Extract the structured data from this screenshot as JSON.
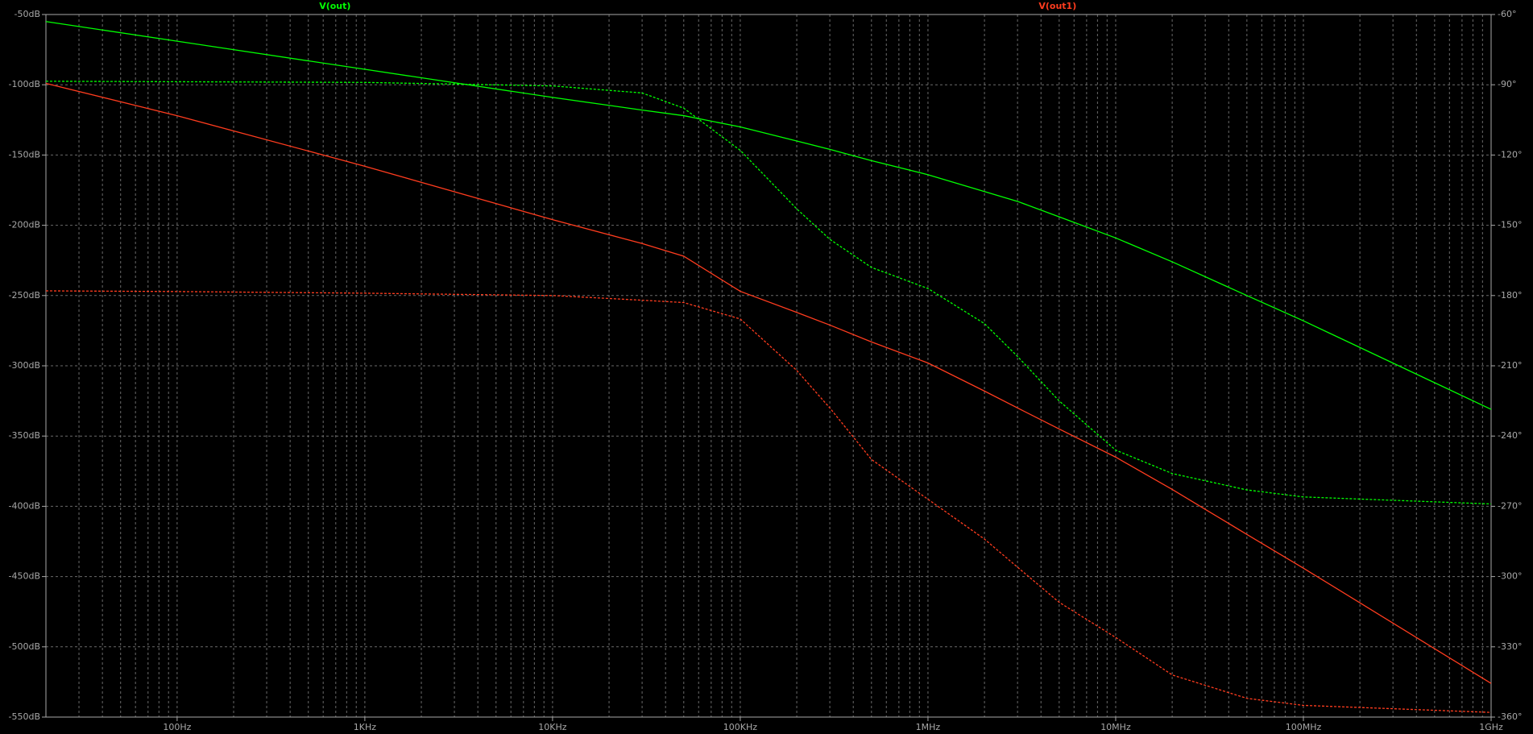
{
  "chart_data": {
    "type": "line",
    "x": [
      20,
      100,
      1000,
      10000,
      30000,
      50000,
      100000,
      200000,
      300000,
      500000,
      1000000,
      2000000,
      3000000,
      5000000,
      10000000,
      20000000,
      50000000,
      100000000,
      1000000000
    ],
    "series": [
      {
        "name": "V(out)",
        "color": "#00ff00",
        "values": [
          -55,
          -69,
          -89,
          -109,
          -118,
          -122,
          -130,
          -140,
          -146,
          -154,
          -164,
          -176,
          -183,
          -194,
          -209,
          -226,
          -250,
          -268,
          -331
        ],
        "phase": [
          -88.5,
          -88.7,
          -89,
          -90.5,
          -93.5,
          -100,
          -118,
          -143,
          -156,
          -168,
          -177,
          -192,
          -206,
          -225,
          -246,
          -256,
          -263,
          -266,
          -269
        ]
      },
      {
        "name": "V(out1)",
        "color": "#ff3c1e",
        "values": [
          -99,
          -122,
          -158,
          -196,
          -213,
          -222,
          -247,
          -262,
          -271,
          -283,
          -298,
          -318,
          -330,
          -345,
          -365,
          -388,
          -420,
          -444,
          -526
        ],
        "phase": [
          -178,
          -178.3,
          -179,
          -180,
          -182,
          -183,
          -190,
          -212,
          -228,
          -250,
          -267,
          -284,
          -296,
          -311,
          -326,
          -342,
          -352,
          -355,
          -358
        ]
      }
    ],
    "log_x": true,
    "grid": true,
    "xlim": [
      20,
      1000000000
    ],
    "xticks": [
      {
        "value": 100,
        "label": "100Hz"
      },
      {
        "value": 1000,
        "label": "1KHz"
      },
      {
        "value": 10000,
        "label": "10KHz"
      },
      {
        "value": 100000,
        "label": "100KHz"
      },
      {
        "value": 1000000,
        "label": "1MHz"
      },
      {
        "value": 10000000,
        "label": "10MHz"
      },
      {
        "value": 100000000,
        "label": "100MHz"
      },
      {
        "value": 1000000000,
        "label": "1GHz"
      }
    ],
    "ylim": [
      -550,
      -50
    ],
    "yticks": [
      {
        "value": -50,
        "label": "-50dB"
      },
      {
        "value": -100,
        "label": "-100dB"
      },
      {
        "value": -150,
        "label": "-150dB"
      },
      {
        "value": -200,
        "label": "-200dB"
      },
      {
        "value": -250,
        "label": "-250dB"
      },
      {
        "value": -300,
        "label": "-300dB"
      },
      {
        "value": -350,
        "label": "-350dB"
      },
      {
        "value": -400,
        "label": "-400dB"
      },
      {
        "value": -450,
        "label": "-450dB"
      },
      {
        "value": -500,
        "label": "-500dB"
      },
      {
        "value": -550,
        "label": "-550dB"
      }
    ],
    "y2lim": [
      -360,
      -60
    ],
    "y2ticks": [
      {
        "value": -60,
        "label": "-60°"
      },
      {
        "value": -90,
        "label": "-90°"
      },
      {
        "value": -120,
        "label": "-120°"
      },
      {
        "value": -150,
        "label": "-150°"
      },
      {
        "value": -180,
        "label": "-180°"
      },
      {
        "value": -210,
        "label": "-210°"
      },
      {
        "value": -240,
        "label": "-240°"
      },
      {
        "value": -270,
        "label": "-270°"
      },
      {
        "value": -300,
        "label": "-300°"
      },
      {
        "value": -330,
        "label": "-330°"
      },
      {
        "value": -360,
        "label": "-360°"
      }
    ]
  }
}
